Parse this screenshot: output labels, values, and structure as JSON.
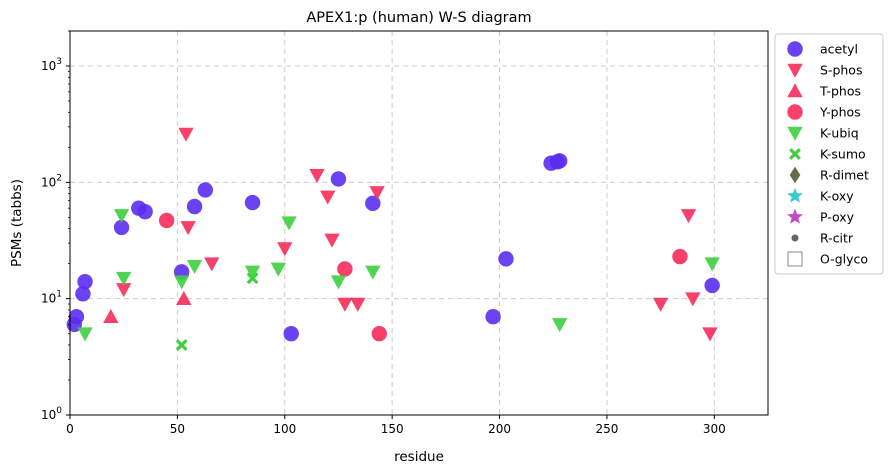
{
  "chart_data": {
    "type": "scatter",
    "title": "APEX1:p (human) W-S diagram",
    "xlabel": "residue",
    "ylabel": "PSMs (tabbs)",
    "xlim": [
      0,
      325
    ],
    "ylim": [
      1,
      2000
    ],
    "yscale": "log",
    "x_ticks": [
      0,
      50,
      100,
      150,
      200,
      250,
      300
    ],
    "y_ticks": [
      {
        "value": 1,
        "label": "10",
        "exp": "0"
      },
      {
        "value": 10,
        "label": "10",
        "exp": "1"
      },
      {
        "value": 100,
        "label": "10",
        "exp": "2"
      },
      {
        "value": 1000,
        "label": "10",
        "exp": "3"
      }
    ],
    "grid": true,
    "legend_position": "outside-right",
    "series": [
      {
        "name": "acetyl",
        "marker": "circle",
        "color": "#5b2ef0",
        "x": [
          2,
          3,
          6,
          7,
          24,
          32,
          35,
          52,
          58,
          63,
          85,
          103,
          125,
          141,
          197,
          203,
          224,
          227,
          228,
          299
        ],
        "y": [
          6,
          7,
          11,
          14,
          41,
          60,
          56,
          17,
          62,
          86,
          67,
          5,
          107,
          66,
          7,
          22,
          146,
          150,
          153,
          13
        ]
      },
      {
        "name": "S-phos",
        "marker": "triangle-down",
        "color": "#f72c5a",
        "x": [
          25,
          54,
          55,
          66,
          100,
          115,
          120,
          122,
          128,
          134,
          143,
          275,
          288,
          290,
          298
        ],
        "y": [
          12,
          260,
          41,
          20,
          27,
          115,
          75,
          32,
          9,
          9,
          82,
          9,
          52,
          10,
          5
        ]
      },
      {
        "name": "T-phos",
        "marker": "triangle-up",
        "color": "#f72c5a",
        "x": [
          19,
          53
        ],
        "y": [
          7,
          10
        ]
      },
      {
        "name": "Y-phos",
        "marker": "circle",
        "color": "#f72c5a",
        "x": [
          45,
          128,
          144,
          284
        ],
        "y": [
          47,
          18,
          5,
          23
        ]
      },
      {
        "name": "K-ubiq",
        "marker": "triangle-down",
        "color": "#3ecf3e",
        "x": [
          7,
          24,
          25,
          52,
          58,
          85,
          97,
          102,
          125,
          141,
          228,
          299
        ],
        "y": [
          5,
          52,
          15,
          14,
          19,
          17,
          18,
          45,
          14,
          17,
          6,
          20
        ]
      },
      {
        "name": "K-sumo",
        "marker": "x",
        "color": "#3ecf3e",
        "x": [
          52,
          85
        ],
        "y": [
          4,
          15
        ]
      },
      {
        "name": "R-dimet",
        "marker": "diamond",
        "color": "#6b6b45",
        "x": [],
        "y": []
      },
      {
        "name": "K-oxy",
        "marker": "star",
        "color": "#3ec8d0",
        "x": [],
        "y": []
      },
      {
        "name": "P-oxy",
        "marker": "star",
        "color": "#c845c8",
        "x": [],
        "y": []
      },
      {
        "name": "R-citr",
        "marker": "small-circle",
        "color": "#666666",
        "x": [],
        "y": []
      },
      {
        "name": "O-glyco",
        "marker": "square-open",
        "color": "#888888",
        "x": [],
        "y": []
      }
    ]
  }
}
